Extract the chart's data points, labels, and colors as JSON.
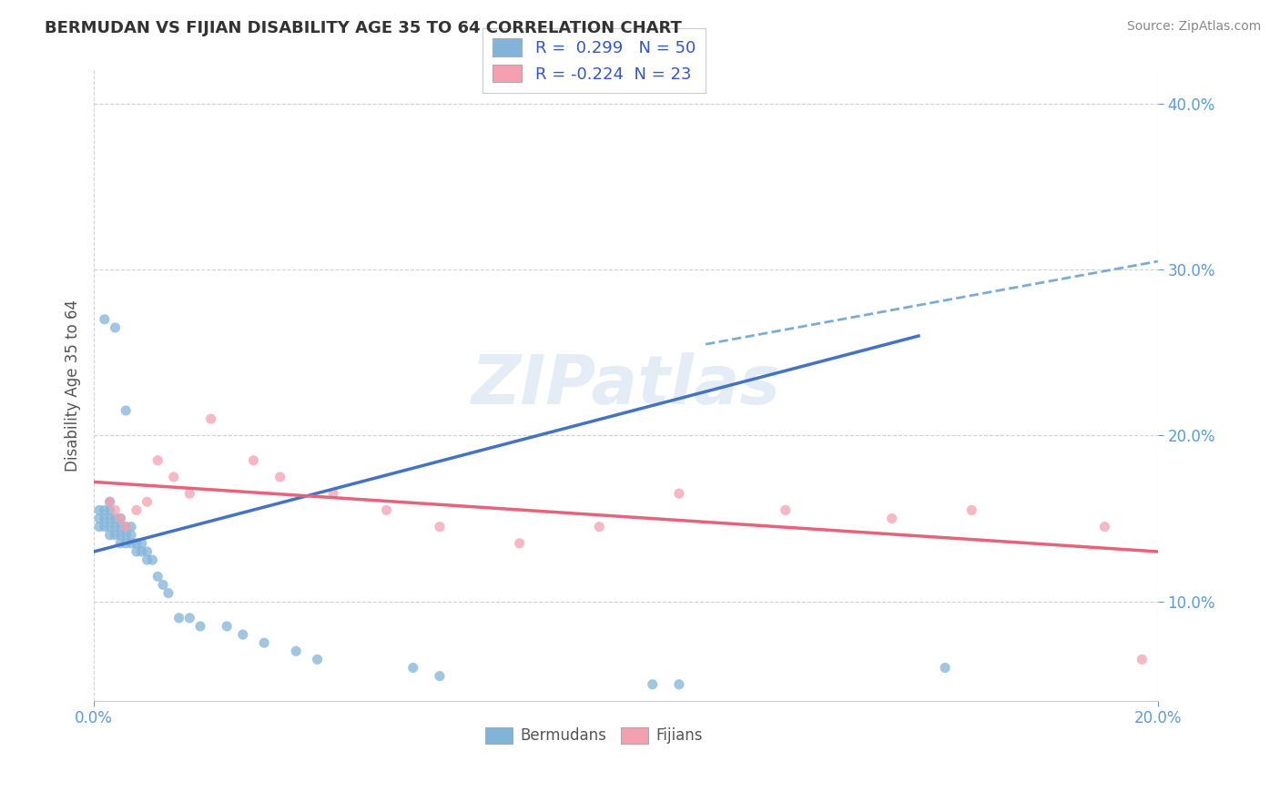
{
  "title": "BERMUDAN VS FIJIAN DISABILITY AGE 35 TO 64 CORRELATION CHART",
  "source": "Source: ZipAtlas.com",
  "ylabel": "Disability Age 35 to 64",
  "xlim": [
    0.0,
    0.2
  ],
  "ylim": [
    0.04,
    0.42
  ],
  "y_ticks": [
    0.1,
    0.2,
    0.3,
    0.4
  ],
  "y_tick_labels": [
    "10.0%",
    "20.0%",
    "30.0%",
    "40.0%"
  ],
  "bermudan_color": "#82b4d9",
  "fijian_color": "#f4a0b0",
  "bermudan_line_color": "#4472c4",
  "fijian_line_color": "#e8627a",
  "dashed_line_color": "#7badd4",
  "r_bermudan": 0.299,
  "n_bermudan": 50,
  "r_fijian": -0.224,
  "n_fijian": 23,
  "watermark": "ZIPatlas",
  "bermudan_x": [
    0.001,
    0.001,
    0.001,
    0.002,
    0.002,
    0.002,
    0.003,
    0.003,
    0.003,
    0.003,
    0.003,
    0.004,
    0.004,
    0.004,
    0.005,
    0.005,
    0.005,
    0.005,
    0.006,
    0.006,
    0.006,
    0.007,
    0.007,
    0.007,
    0.008,
    0.008,
    0.009,
    0.009,
    0.01,
    0.01,
    0.011,
    0.012,
    0.013,
    0.014,
    0.016,
    0.018,
    0.02,
    0.025,
    0.028,
    0.032,
    0.038,
    0.042,
    0.06,
    0.065,
    0.105,
    0.11,
    0.16,
    0.002,
    0.004,
    0.006
  ],
  "bermudan_y": [
    0.145,
    0.15,
    0.155,
    0.145,
    0.15,
    0.155,
    0.14,
    0.145,
    0.15,
    0.155,
    0.16,
    0.14,
    0.145,
    0.15,
    0.135,
    0.14,
    0.145,
    0.15,
    0.135,
    0.14,
    0.145,
    0.135,
    0.14,
    0.145,
    0.13,
    0.135,
    0.13,
    0.135,
    0.125,
    0.13,
    0.125,
    0.115,
    0.11,
    0.105,
    0.09,
    0.09,
    0.085,
    0.085,
    0.08,
    0.075,
    0.07,
    0.065,
    0.06,
    0.055,
    0.05,
    0.05,
    0.06,
    0.27,
    0.265,
    0.215
  ],
  "fijian_x": [
    0.003,
    0.004,
    0.005,
    0.006,
    0.008,
    0.01,
    0.012,
    0.015,
    0.018,
    0.022,
    0.03,
    0.035,
    0.045,
    0.055,
    0.065,
    0.08,
    0.095,
    0.11,
    0.13,
    0.15,
    0.165,
    0.19,
    0.197
  ],
  "fijian_y": [
    0.16,
    0.155,
    0.15,
    0.145,
    0.155,
    0.16,
    0.185,
    0.175,
    0.165,
    0.21,
    0.185,
    0.175,
    0.165,
    0.155,
    0.145,
    0.135,
    0.145,
    0.165,
    0.155,
    0.15,
    0.155,
    0.145,
    0.065
  ],
  "blue_line_x": [
    0.0,
    0.155
  ],
  "blue_line_y": [
    0.13,
    0.26
  ],
  "dash_line_x": [
    0.115,
    0.2
  ],
  "dash_line_y": [
    0.255,
    0.305
  ],
  "pink_line_x": [
    0.0,
    0.2
  ],
  "pink_line_y": [
    0.172,
    0.13
  ]
}
